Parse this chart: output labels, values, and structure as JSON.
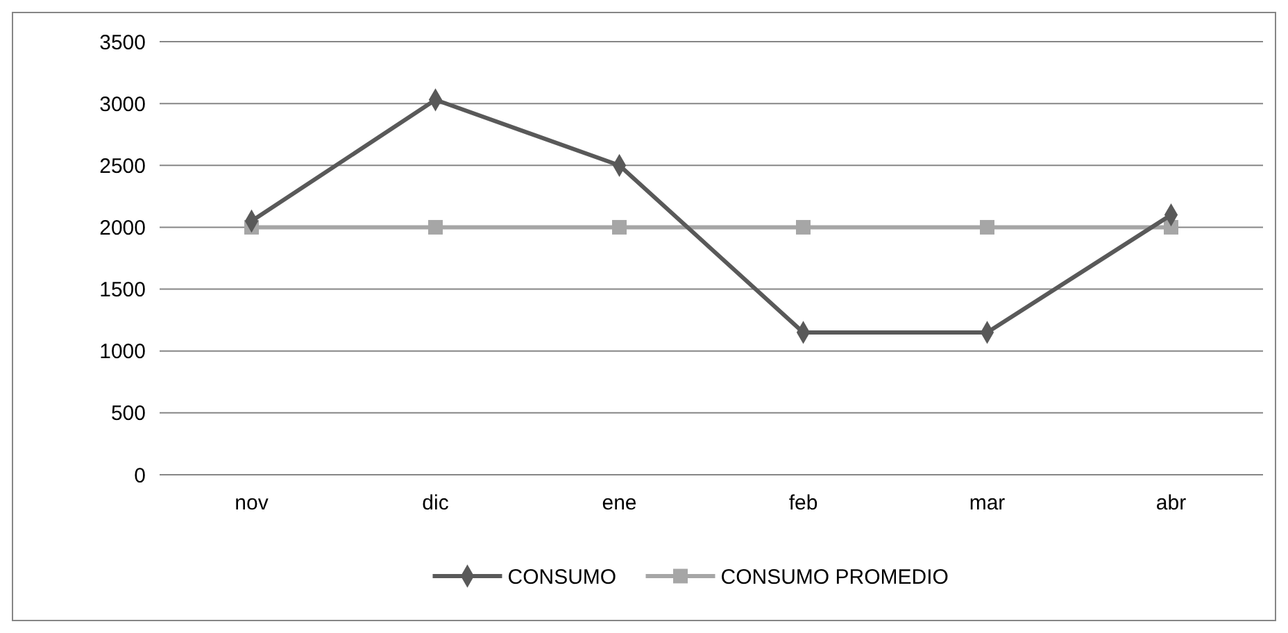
{
  "chart_data": {
    "type": "line",
    "categories": [
      "nov",
      "dic",
      "ene",
      "feb",
      "mar",
      "abr"
    ],
    "series": [
      {
        "name": "CONSUMO",
        "color": "#595959",
        "marker": "diamond",
        "values": [
          2050,
          3030,
          2500,
          1150,
          1150,
          2100
        ]
      },
      {
        "name": "CONSUMO PROMEDIO",
        "color": "#a6a6a6",
        "marker": "square",
        "values": [
          2000,
          2000,
          2000,
          2000,
          2000,
          2000
        ]
      }
    ],
    "ylim": [
      0,
      3500
    ],
    "yticks": [
      0,
      500,
      1000,
      1500,
      2000,
      2500,
      3000,
      3500
    ],
    "grid": "y",
    "legend": "bottom",
    "line_style": "solid"
  }
}
